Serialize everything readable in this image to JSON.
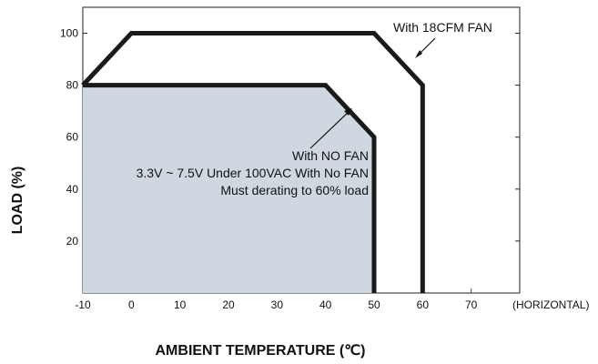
{
  "chart_data": {
    "type": "line",
    "title": "",
    "xlabel": "AMBIENT TEMPERATURE (℃)",
    "ylabel": "LOAD (%)",
    "x_suffix": "(HORIZONTAL)",
    "xlim": [
      -10,
      80
    ],
    "ylim": [
      0,
      110
    ],
    "x_ticks": [
      -10,
      0,
      10,
      20,
      30,
      40,
      50,
      60,
      70
    ],
    "y_ticks": [
      20,
      40,
      60,
      80,
      100
    ],
    "grid": false,
    "series": [
      {
        "name": "With 18CFM FAN",
        "x": [
          -10,
          0,
          50,
          60,
          60
        ],
        "y": [
          80,
          100,
          100,
          80,
          0
        ],
        "filled": false
      },
      {
        "name": "With NO FAN",
        "x": [
          -10,
          40,
          50,
          50
        ],
        "y": [
          80,
          80,
          60,
          0
        ],
        "filled": true
      }
    ],
    "annotations": {
      "fan": "With 18CFM FAN",
      "nofan": [
        "With NO FAN",
        "3.3V ~ 7.5V Under 100VAC With No FAN",
        "Must derating to 60% load"
      ]
    },
    "colors": {
      "line": "#1a1a1a",
      "fill": "#cfd8e0",
      "axis": "#222222",
      "tick_70": "#1a47c6"
    }
  }
}
